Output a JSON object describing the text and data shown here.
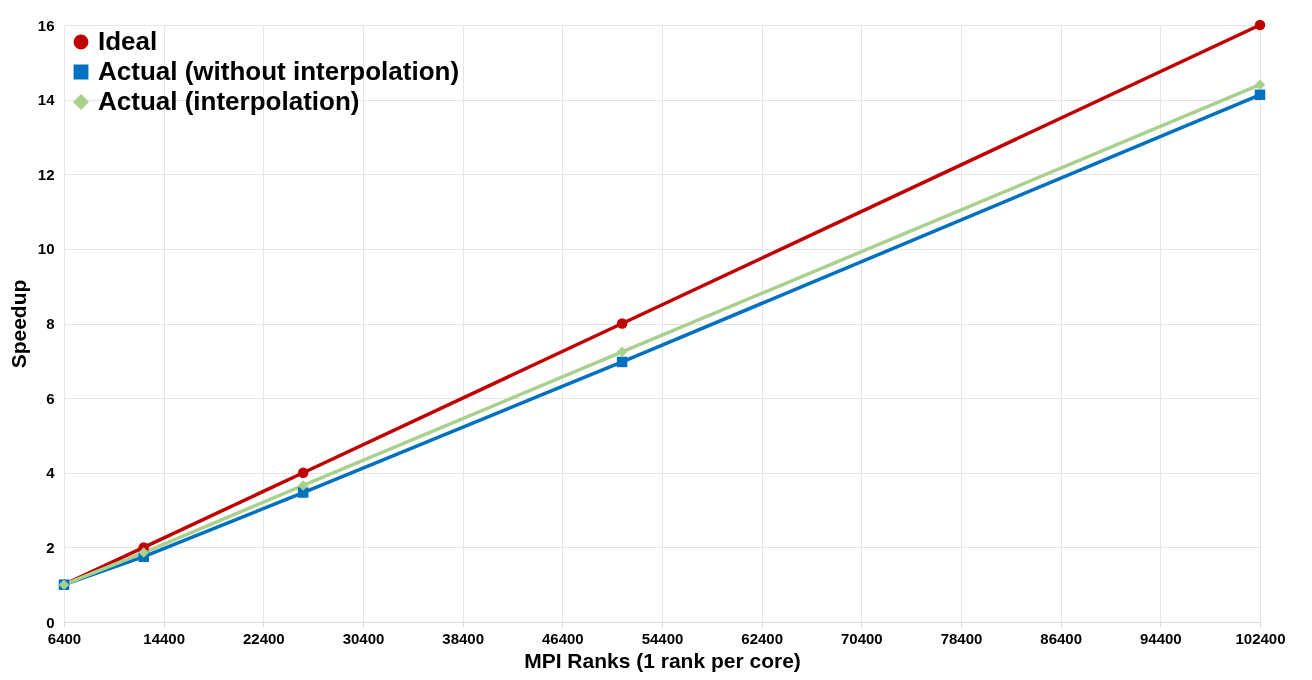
{
  "chart_data": {
    "type": "line",
    "xlabel": "MPI Ranks (1 rank per core)",
    "ylabel": "Speedup",
    "x": [
      6400,
      12800,
      25600,
      51200,
      102400
    ],
    "series": [
      {
        "name": "Ideal",
        "color": "#c00000",
        "marker": "circle",
        "values": [
          1,
          2,
          4,
          8,
          16
        ]
      },
      {
        "name": "Actual (without interpolation)",
        "color": "#0070c0",
        "marker": "square",
        "values": [
          1,
          1.75,
          3.47,
          6.97,
          14.13
        ]
      },
      {
        "name": "Actual (interpolation)",
        "color": "#a9d18e",
        "marker": "diamond",
        "values": [
          1,
          1.86,
          3.66,
          7.24,
          14.4
        ]
      }
    ],
    "xlim": [
      6400,
      102400
    ],
    "xticks": [
      6400,
      14400,
      22400,
      30400,
      38400,
      46400,
      54400,
      62400,
      70400,
      78400,
      86400,
      94400,
      102400
    ],
    "ylim": [
      0,
      16
    ],
    "yticks": [
      0,
      2,
      4,
      6,
      8,
      10,
      12,
      14,
      16
    ],
    "grid": true,
    "legend": "top left",
    "line_style": "solid"
  }
}
